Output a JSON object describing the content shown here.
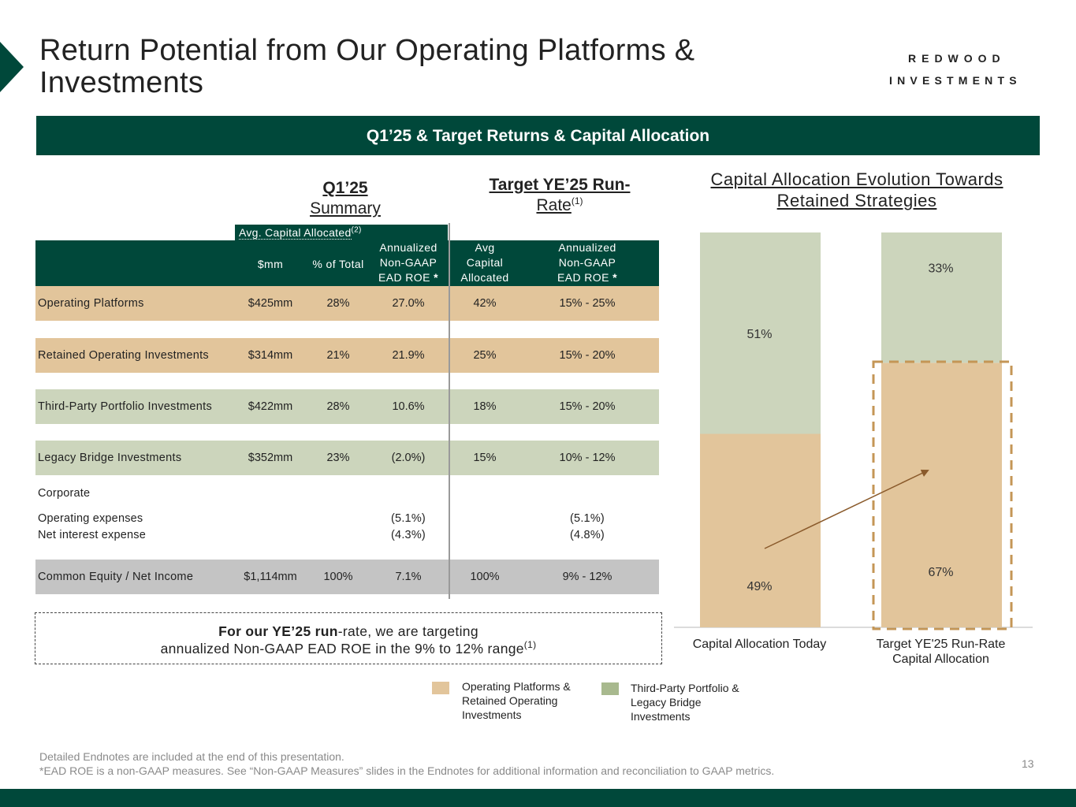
{
  "title": "Return Potential from Our Operating Platforms & Investments",
  "logo": {
    "line1": "REDWOOD",
    "line2": "INVESTMENTS"
  },
  "banner": "Q1’25 & Target Returns & Capital Allocation",
  "q1_heading": {
    "line1": "Q1’25",
    "line2": "Summary"
  },
  "target_heading": {
    "line1": "Target YE’25 Run-",
    "line2": "Rate",
    "sup": "(1)"
  },
  "table": {
    "group_header": "Avg. Capital Allocated",
    "group_header_sup": "(2)",
    "headers": {
      "mm": "$mm",
      "pct_total": "% of Total",
      "roe_l1": "Annualized",
      "roe_l2": "Non-GAAP",
      "roe_l3": "EAD ROE",
      "avg_l1": "Avg",
      "avg_l2": "Capital",
      "avg_l3": "Allocated",
      "troe_l1": "Annualized",
      "troe_l2": "Non-GAAP",
      "troe_l3": "EAD ROE",
      "star": "*"
    },
    "rows": [
      {
        "label": "Operating Platforms",
        "mm": "$425mm",
        "pct": "28%",
        "roe": "27.0%",
        "avg": "42%",
        "target": "15% - 25%"
      },
      {
        "label": "Retained Operating Investments",
        "mm": "$314mm",
        "pct": "21%",
        "roe": "21.9%",
        "avg": "25%",
        "target": "15% - 20%"
      },
      {
        "label": "Third-Party Portfolio Investments",
        "mm": "$422mm",
        "pct": "28%",
        "roe": "10.6%",
        "avg": "18%",
        "target": "15% - 20%"
      },
      {
        "label": "Legacy Bridge Investments",
        "mm": "$352mm",
        "pct": "23%",
        "roe": "(2.0%)",
        "avg": "15%",
        "target": "10% - 12%"
      }
    ],
    "corporate": {
      "label": "Corporate",
      "opex_label": "Operating expenses",
      "opex_roe": "(5.1%)",
      "opex_target": "(5.1%)",
      "interest_label": "Net interest expense",
      "interest_roe": "(4.3%)",
      "interest_target": "(4.8%)"
    },
    "total": {
      "label": "Common Equity / Net Income",
      "mm": "$1,114mm",
      "pct": "100%",
      "roe": "7.1%",
      "avg": "100%",
      "target": "9% - 12%"
    }
  },
  "note": {
    "bold": "For our YE’25 run",
    "rest": "-rate, we are targeting",
    "line2": "annualized Non-GAAP EAD ROE in the 9% to 12% range",
    "sup": "(1)"
  },
  "chart_data": {
    "type": "bar",
    "stacked": true,
    "title": "Capital Allocation Evolution Towards Retained Strategies",
    "categories": [
      "Capital Allocation Today",
      "Target YE'25 Run-Rate Capital Allocation"
    ],
    "category_lines": [
      [
        "Capital Allocation Today"
      ],
      [
        "Target YE'25 Run-Rate",
        "Capital Allocation"
      ]
    ],
    "series": [
      {
        "name": "Operating Platforms & Retained Operating Investments",
        "values": [
          49,
          67
        ],
        "color": "#e2c59b"
      },
      {
        "name": "Third-Party Portfolio & Legacy Bridge Investments",
        "values": [
          51,
          33
        ],
        "color": "#ccd5bc"
      }
    ],
    "labels": [
      [
        "49%",
        "51%"
      ],
      [
        "67%",
        "33%"
      ]
    ],
    "ylim": [
      0,
      100
    ],
    "unit": "%"
  },
  "legend": {
    "a": {
      "l1": "Operating Platforms &",
      "l2": "Retained Operating",
      "l3": "Investments",
      "color": "#e2c59b"
    },
    "b": {
      "l1": "Third-Party Portfolio &",
      "l2": "Legacy Bridge",
      "l3": "Investments",
      "color": "#a8b98e"
    }
  },
  "footnotes": {
    "line1": "Detailed Endnotes are included at the end of this presentation.",
    "line2": "*EAD ROE is a non-GAAP measures. See “Non-GAAP Measures” slides in the Endnotes for additional information and reconciliation to GAAP metrics."
  },
  "page_number": "13"
}
